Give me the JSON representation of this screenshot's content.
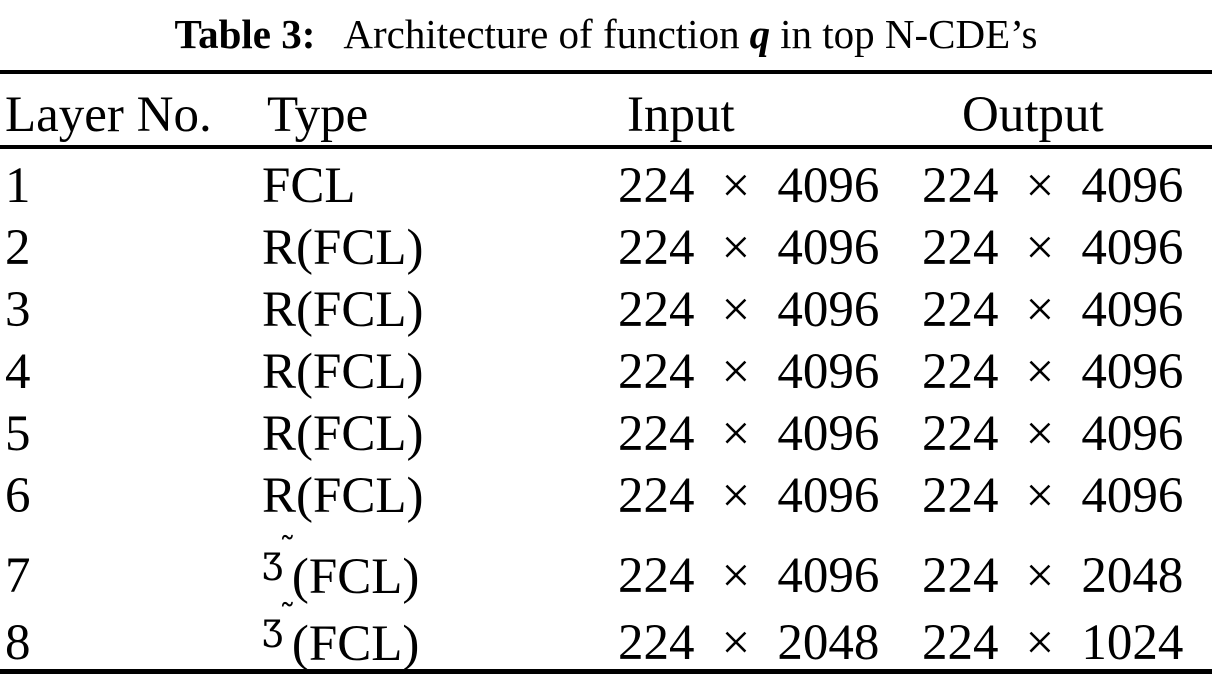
{
  "title": {
    "label": "Table 3:",
    "text_before_q": "Architecture of function",
    "q_symbol": "q",
    "text_after_q": "in top N-CDE’s"
  },
  "table": {
    "columns": [
      "Layer No.",
      "Type",
      "Input",
      "Output"
    ],
    "rows": [
      {
        "layer_no": "1",
        "type_text": "FCL",
        "type_symbol": "",
        "type_symbol_accent": "",
        "input": "224 × 4096",
        "output": "224 × 4096"
      },
      {
        "layer_no": "2",
        "type_text": "R(FCL)",
        "type_symbol": "",
        "type_symbol_accent": "",
        "input": "224 × 4096",
        "output": "224 × 4096"
      },
      {
        "layer_no": "3",
        "type_text": "R(FCL)",
        "type_symbol": "",
        "type_symbol_accent": "",
        "input": "224 × 4096",
        "output": "224 × 4096"
      },
      {
        "layer_no": "4",
        "type_text": "R(FCL)",
        "type_symbol": "",
        "type_symbol_accent": "",
        "input": "224 × 4096",
        "output": "224 × 4096"
      },
      {
        "layer_no": "5",
        "type_text": "R(FCL)",
        "type_symbol": "",
        "type_symbol_accent": "",
        "input": "224 × 4096",
        "output": "224 × 4096"
      },
      {
        "layer_no": "6",
        "type_text": "R(FCL)",
        "type_symbol": "",
        "type_symbol_accent": "",
        "input": "224 × 4096",
        "output": "224 × 4096"
      },
      {
        "layer_no": "7",
        "type_text": "(FCL)",
        "type_symbol": "Ʒ",
        "type_symbol_accent": "˜",
        "input": "224 × 4096",
        "output": "224 × 2048"
      },
      {
        "layer_no": "8",
        "type_text": "(FCL)",
        "type_symbol": "Ʒ",
        "type_symbol_accent": "˜",
        "input": "224 × 2048",
        "output": "224 × 1024"
      }
    ]
  },
  "colors": {
    "text": "#000000",
    "background": "#ffffff",
    "rule": "#000000"
  }
}
